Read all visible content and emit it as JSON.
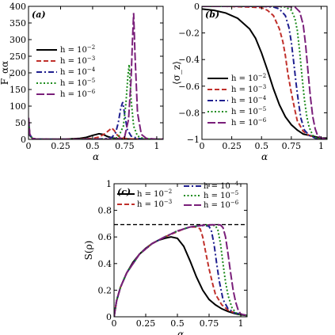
{
  "colors": {
    "h1": "#000000",
    "h2": "#c0302b",
    "h3": "#1f1f8f",
    "h4": "#1a8a1a",
    "h5": "#7a1f7a",
    "reference_line": "#000000"
  },
  "chart_data": [
    {
      "type": "line",
      "panel_label": "(a)",
      "xlabel": "α",
      "ylabel": "F_αα",
      "xlim": [
        0,
        1.05
      ],
      "ylim": [
        0,
        400
      ],
      "xticks": [
        0,
        0.25,
        0.5,
        0.75,
        1
      ],
      "xtick_labels": [
        "0",
        "0.25",
        "0.5",
        "0.75",
        "1"
      ],
      "yticks": [
        0,
        50,
        100,
        150,
        200,
        250,
        300,
        350,
        400
      ],
      "ytick_labels": [
        "0",
        "50",
        "100",
        "150",
        "200",
        "250",
        "300",
        "350",
        "400"
      ],
      "grid": false,
      "legend_position": "left",
      "series": [
        {
          "name": "h = 10^{-2}",
          "name_base": "h = 10",
          "name_exp": "−2",
          "color_key": "h1",
          "dash": "solid",
          "x": [
            0.001,
            0.01,
            0.03,
            0.06,
            0.1,
            0.2,
            0.3,
            0.4,
            0.45,
            0.5,
            0.55,
            0.58,
            0.62,
            0.66,
            0.7,
            0.8,
            0.9,
            1.0,
            1.05
          ],
          "y": [
            45,
            12,
            3,
            1,
            0.5,
            0.5,
            1,
            3,
            6,
            12,
            17,
            15,
            8,
            4,
            2,
            1,
            0.5,
            0.3,
            0.3
          ]
        },
        {
          "name": "h = 10^{-3}",
          "name_base": "h = 10",
          "name_exp": "−3",
          "color_key": "h2",
          "dash": "dash",
          "x": [
            0.001,
            0.01,
            0.03,
            0.06,
            0.1,
            0.2,
            0.3,
            0.4,
            0.5,
            0.55,
            0.6,
            0.63,
            0.65,
            0.67,
            0.69,
            0.71,
            0.75,
            0.8,
            0.9,
            1.0,
            1.05
          ],
          "y": [
            50,
            13,
            3,
            1,
            0.5,
            0.3,
            0.5,
            1,
            3,
            7,
            18,
            28,
            34,
            26,
            14,
            7,
            3,
            1.5,
            0.5,
            0.3,
            0.3
          ]
        },
        {
          "name": "h = 10^{-4}",
          "name_base": "h = 10",
          "name_exp": "−4",
          "color_key": "h3",
          "dash": "dashdot",
          "x": [
            0.001,
            0.01,
            0.03,
            0.06,
            0.1,
            0.3,
            0.5,
            0.6,
            0.65,
            0.68,
            0.7,
            0.72,
            0.735,
            0.75,
            0.77,
            0.8,
            0.85,
            0.9,
            1.0,
            1.05
          ],
          "y": [
            55,
            14,
            3,
            1,
            0.5,
            0.3,
            0.5,
            2,
            6,
            20,
            50,
            95,
            112,
            75,
            30,
            10,
            3,
            1,
            0.4,
            0.3
          ]
        },
        {
          "name": "h = 10^{-5}",
          "name_base": "h = 10",
          "name_exp": "−5",
          "color_key": "h4",
          "dash": "dot",
          "x": [
            0.001,
            0.01,
            0.03,
            0.06,
            0.1,
            0.3,
            0.5,
            0.65,
            0.7,
            0.74,
            0.76,
            0.775,
            0.785,
            0.8,
            0.82,
            0.85,
            0.9,
            1.0,
            1.05
          ],
          "y": [
            60,
            15,
            3,
            1,
            0.5,
            0.3,
            0.4,
            1,
            6,
            40,
            110,
            190,
            225,
            120,
            40,
            10,
            2,
            0.5,
            0.3
          ]
        },
        {
          "name": "h = 10^{-6}",
          "name_base": "h = 10",
          "name_exp": "−6",
          "color_key": "h5",
          "dash": "longdash",
          "x": [
            0.001,
            0.01,
            0.03,
            0.06,
            0.1,
            0.3,
            0.5,
            0.7,
            0.75,
            0.78,
            0.8,
            0.81,
            0.82,
            0.83,
            0.85,
            0.88,
            0.92,
            1.0,
            1.05
          ],
          "y": [
            65,
            16,
            3,
            1,
            0.5,
            0.3,
            0.4,
            1,
            8,
            60,
            180,
            290,
            380,
            260,
            80,
            15,
            3,
            0.5,
            0.3
          ]
        }
      ]
    },
    {
      "type": "line",
      "panel_label": "(b)",
      "xlabel": "α",
      "ylabel": "⟨σ_z⟩",
      "xlim": [
        0,
        1.05
      ],
      "ylim": [
        -1,
        0
      ],
      "xticks": [
        0,
        0.25,
        0.5,
        0.75,
        1
      ],
      "xtick_labels": [
        "0",
        "0.25",
        "0.5",
        "0.75",
        "1"
      ],
      "yticks": [
        -1,
        -0.8,
        -0.6,
        -0.4,
        -0.2,
        0
      ],
      "ytick_labels": [
        "−1",
        "−0.8",
        "−0.6",
        "−0.4",
        "−0.2",
        "0"
      ],
      "grid": false,
      "legend_position": "bottom-left",
      "series": [
        {
          "name": "h = 10^{-2}",
          "name_base": "h = 10",
          "name_exp": "−2",
          "color_key": "h1",
          "dash": "solid",
          "x": [
            0,
            0.1,
            0.2,
            0.3,
            0.4,
            0.45,
            0.5,
            0.55,
            0.6,
            0.65,
            0.7,
            0.75,
            0.8,
            0.85,
            0.9,
            0.95,
            1.0,
            1.05
          ],
          "y": [
            -0.02,
            -0.03,
            -0.05,
            -0.09,
            -0.17,
            -0.24,
            -0.35,
            -0.48,
            -0.62,
            -0.74,
            -0.83,
            -0.89,
            -0.93,
            -0.96,
            -0.97,
            -0.98,
            -0.99,
            -0.99
          ]
        },
        {
          "name": "h = 10^{-3}",
          "name_base": "h = 10",
          "name_exp": "−3",
          "color_key": "h2",
          "dash": "dash",
          "x": [
            0,
            0.2,
            0.4,
            0.5,
            0.55,
            0.6,
            0.65,
            0.68,
            0.7,
            0.72,
            0.75,
            0.78,
            0.8,
            0.85,
            0.9,
            0.95,
            1.0,
            1.05
          ],
          "y": [
            0,
            0,
            -0.005,
            -0.01,
            -0.03,
            -0.07,
            -0.17,
            -0.27,
            -0.37,
            -0.5,
            -0.65,
            -0.78,
            -0.86,
            -0.94,
            -0.97,
            -0.99,
            -0.995,
            -1.0
          ]
        },
        {
          "name": "h = 10^{-4}",
          "name_base": "h = 10",
          "name_exp": "−4",
          "color_key": "h3",
          "dash": "dashdot",
          "x": [
            0,
            0.3,
            0.5,
            0.6,
            0.65,
            0.7,
            0.73,
            0.75,
            0.77,
            0.79,
            0.81,
            0.83,
            0.86,
            0.9,
            0.95,
            1.0,
            1.05
          ],
          "y": [
            0,
            0,
            0,
            -0.005,
            -0.02,
            -0.07,
            -0.16,
            -0.27,
            -0.42,
            -0.58,
            -0.72,
            -0.84,
            -0.93,
            -0.97,
            -0.99,
            -1.0,
            -1.0
          ]
        },
        {
          "name": "h = 10^{-5}",
          "name_base": "h = 10",
          "name_exp": "−5",
          "color_key": "h4",
          "dash": "dot",
          "x": [
            0,
            0.4,
            0.6,
            0.7,
            0.75,
            0.78,
            0.8,
            0.82,
            0.84,
            0.86,
            0.88,
            0.9,
            0.93,
            0.96,
            1.0,
            1.05
          ],
          "y": [
            0,
            0,
            0,
            -0.005,
            -0.03,
            -0.09,
            -0.18,
            -0.34,
            -0.53,
            -0.7,
            -0.83,
            -0.91,
            -0.97,
            -0.99,
            -1.0,
            -1.0
          ]
        },
        {
          "name": "h = 10^{-6}",
          "name_base": "h = 10",
          "name_exp": "−6",
          "color_key": "h5",
          "dash": "longdash",
          "x": [
            0,
            0.5,
            0.7,
            0.78,
            0.82,
            0.85,
            0.87,
            0.89,
            0.91,
            0.93,
            0.95,
            0.97,
            1.0,
            1.05
          ],
          "y": [
            0,
            0,
            0,
            -0.005,
            -0.04,
            -0.14,
            -0.29,
            -0.49,
            -0.68,
            -0.83,
            -0.92,
            -0.97,
            -0.99,
            -1.0
          ]
        }
      ]
    },
    {
      "type": "line",
      "panel_label": "(c)",
      "xlabel": "α",
      "ylabel": "S(ρ)",
      "xlim": [
        0,
        1.05
      ],
      "ylim": [
        0,
        1
      ],
      "xticks": [
        0,
        0.25,
        0.5,
        0.75,
        1
      ],
      "xtick_labels": [
        "0",
        "0.25",
        "0.5",
        "0.75",
        "1"
      ],
      "yticks": [
        0,
        0.2,
        0.4,
        0.6,
        0.8,
        1
      ],
      "ytick_labels": [
        "0",
        "0.2",
        "0.4",
        "0.6",
        "0.8",
        "1"
      ],
      "grid": false,
      "legend_position": "top",
      "reference_line_y": 0.693,
      "series": [
        {
          "name": "h = 10^{-2}",
          "name_base": "h = 10",
          "name_exp": "−2",
          "color_key": "h1",
          "dash": "solid",
          "x": [
            0,
            0.02,
            0.05,
            0.1,
            0.15,
            0.2,
            0.25,
            0.3,
            0.35,
            0.4,
            0.45,
            0.5,
            0.55,
            0.6,
            0.65,
            0.7,
            0.75,
            0.8,
            0.85,
            0.9,
            0.95,
            1.0,
            1.05
          ],
          "y": [
            0,
            0.12,
            0.22,
            0.33,
            0.41,
            0.47,
            0.515,
            0.55,
            0.575,
            0.59,
            0.6,
            0.59,
            0.53,
            0.42,
            0.3,
            0.2,
            0.13,
            0.09,
            0.06,
            0.04,
            0.025,
            0.015,
            0.01
          ]
        },
        {
          "name": "h = 10^{-3}",
          "name_base": "h = 10",
          "name_exp": "−3",
          "color_key": "h2",
          "dash": "dash",
          "x": [
            0,
            0.02,
            0.05,
            0.1,
            0.2,
            0.3,
            0.4,
            0.5,
            0.55,
            0.6,
            0.65,
            0.68,
            0.7,
            0.72,
            0.75,
            0.78,
            0.8,
            0.85,
            0.9,
            0.95,
            1.0,
            1.05
          ],
          "y": [
            0,
            0.12,
            0.22,
            0.33,
            0.47,
            0.55,
            0.6,
            0.64,
            0.66,
            0.675,
            0.675,
            0.66,
            0.6,
            0.5,
            0.36,
            0.24,
            0.17,
            0.09,
            0.05,
            0.03,
            0.02,
            0.01
          ]
        },
        {
          "name": "h = 10^{-4}",
          "name_base": "h = 10",
          "name_exp": "−4",
          "color_key": "h3",
          "dash": "dashdot",
          "x": [
            0,
            0.02,
            0.05,
            0.1,
            0.2,
            0.3,
            0.4,
            0.5,
            0.6,
            0.68,
            0.72,
            0.75,
            0.77,
            0.79,
            0.81,
            0.83,
            0.86,
            0.9,
            0.95,
            1.0,
            1.05
          ],
          "y": [
            0,
            0.12,
            0.22,
            0.33,
            0.47,
            0.55,
            0.6,
            0.645,
            0.675,
            0.685,
            0.685,
            0.68,
            0.64,
            0.54,
            0.4,
            0.27,
            0.13,
            0.06,
            0.03,
            0.02,
            0.01
          ]
        },
        {
          "name": "h = 10^{-5}",
          "name_base": "h = 10",
          "name_exp": "−5",
          "color_key": "h4",
          "dash": "dot",
          "x": [
            0,
            0.02,
            0.05,
            0.1,
            0.2,
            0.3,
            0.4,
            0.5,
            0.6,
            0.7,
            0.76,
            0.8,
            0.82,
            0.84,
            0.86,
            0.88,
            0.9,
            0.93,
            0.96,
            1.0,
            1.05
          ],
          "y": [
            0,
            0.12,
            0.22,
            0.33,
            0.47,
            0.55,
            0.6,
            0.645,
            0.675,
            0.688,
            0.69,
            0.685,
            0.65,
            0.55,
            0.4,
            0.26,
            0.16,
            0.07,
            0.03,
            0.015,
            0.01
          ]
        },
        {
          "name": "h = 10^{-6}",
          "name_base": "h = 10",
          "name_exp": "−6",
          "color_key": "h5",
          "dash": "longdash",
          "x": [
            0,
            0.02,
            0.05,
            0.1,
            0.2,
            0.3,
            0.4,
            0.5,
            0.6,
            0.7,
            0.8,
            0.84,
            0.86,
            0.88,
            0.9,
            0.92,
            0.94,
            0.96,
            0.98,
            1.0,
            1.05
          ],
          "y": [
            0,
            0.12,
            0.22,
            0.33,
            0.47,
            0.55,
            0.6,
            0.645,
            0.675,
            0.688,
            0.692,
            0.69,
            0.67,
            0.6,
            0.47,
            0.33,
            0.2,
            0.11,
            0.05,
            0.02,
            0.01
          ]
        }
      ]
    }
  ]
}
